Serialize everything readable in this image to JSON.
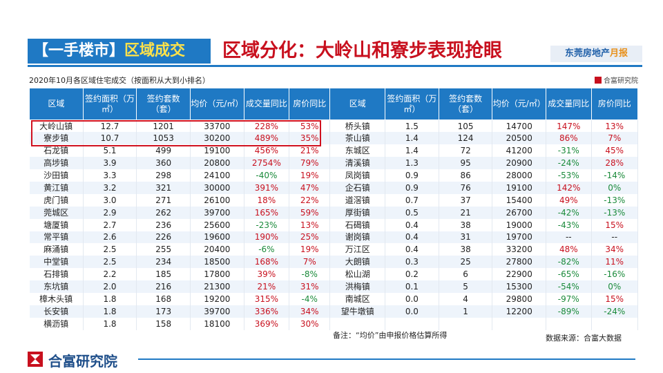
{
  "header": {
    "tag_bracket": "【一手楼市】",
    "tag_topic": "区域成交",
    "title": "区域分化：大岭山和寮步表现抢眼",
    "badge_main": "东莞房地产",
    "badge_accent": "月报"
  },
  "caption": "2020年10月各区域住宅成交（按面积从大到小排名）",
  "brand_small": "合富研究院",
  "columns": [
    "区域",
    "签约面积（万㎡）",
    "签约套数（套）",
    "均价（元/㎡）",
    "成交量同比",
    "房价同比",
    "区域",
    "签约面积（万㎡）",
    "签约套数（套）",
    "均价（元/㎡）",
    "成交量同比",
    "房价同比"
  ],
  "rows": [
    [
      "大岭山镇",
      "12.7",
      "1201",
      "33700",
      "228%",
      "53%",
      "桥头镇",
      "1.5",
      "105",
      "14700",
      "147%",
      "13%"
    ],
    [
      "寮步镇",
      "10.7",
      "1053",
      "30200",
      "489%",
      "35%",
      "茶山镇",
      "1.4",
      "124",
      "20500",
      "86%",
      "7%"
    ],
    [
      "石龙镇",
      "5.1",
      "499",
      "19100",
      "456%",
      "21%",
      "东城区",
      "1.4",
      "72",
      "41200",
      "-31%",
      "45%"
    ],
    [
      "高埗镇",
      "3.9",
      "360",
      "20800",
      "2754%",
      "79%",
      "清溪镇",
      "1.3",
      "95",
      "20900",
      "-24%",
      "28%"
    ],
    [
      "沙田镇",
      "3.3",
      "298",
      "24100",
      "-40%",
      "19%",
      "凤岗镇",
      "0.9",
      "86",
      "28000",
      "-53%",
      "-14%"
    ],
    [
      "黄江镇",
      "3.2",
      "321",
      "30000",
      "391%",
      "47%",
      "企石镇",
      "0.9",
      "76",
      "19100",
      "142%",
      "0%"
    ],
    [
      "虎门镇",
      "3.0",
      "271",
      "26100",
      "18%",
      "22%",
      "道滘镇",
      "0.7",
      "37",
      "15400",
      "49%",
      "-13%"
    ],
    [
      "莞城区",
      "2.9",
      "262",
      "39700",
      "165%",
      "59%",
      "厚街镇",
      "0.5",
      "21",
      "26700",
      "-42%",
      "-13%"
    ],
    [
      "塘厦镇",
      "2.7",
      "236",
      "25600",
      "-23%",
      "13%",
      "石碣镇",
      "0.4",
      "38",
      "19000",
      "-43%",
      "15%"
    ],
    [
      "常平镇",
      "2.6",
      "226",
      "19600",
      "190%",
      "25%",
      "谢岗镇",
      "0.4",
      "31",
      "19700",
      "--",
      "--"
    ],
    [
      "麻涌镇",
      "2.5",
      "255",
      "20400",
      "-6%",
      "19%",
      "万江区",
      "0.4",
      "38",
      "33200",
      "48%",
      "34%"
    ],
    [
      "中堂镇",
      "2.5",
      "234",
      "18500",
      "168%",
      "7%",
      "大朗镇",
      "0.3",
      "25",
      "27800",
      "-82%",
      "11%"
    ],
    [
      "石排镇",
      "2.2",
      "185",
      "17800",
      "39%",
      "-8%",
      "松山湖",
      "0.2",
      "6",
      "22900",
      "-65%",
      "-16%"
    ],
    [
      "东坑镇",
      "2.0",
      "216",
      "21300",
      "21%",
      "31%",
      "洪梅镇",
      "0.1",
      "5",
      "15300",
      "-54%",
      "0%"
    ],
    [
      "樟木头镇",
      "1.8",
      "168",
      "19200",
      "315%",
      "-4%",
      "南城区",
      "0.0",
      "4",
      "29800",
      "-97%",
      "15%"
    ],
    [
      "长安镇",
      "1.8",
      "173",
      "39700",
      "336%",
      "34%",
      "望牛墩镇",
      "0.0",
      "1",
      "12200",
      "-89%",
      "-24%"
    ],
    [
      "横沥镇",
      "1.8",
      "158",
      "18100",
      "369%",
      "30%",
      "",
      "",
      "",
      "",
      "",
      ""
    ]
  ],
  "note": "备注：“均价”由申报价格估算所得",
  "source": "数据来源：合富大数据",
  "footer_name": "合富研究院",
  "colors": {
    "accent_blue": "#1f79c4",
    "positive_red": "#c8101e",
    "negative_green": "#1a8a3a"
  }
}
